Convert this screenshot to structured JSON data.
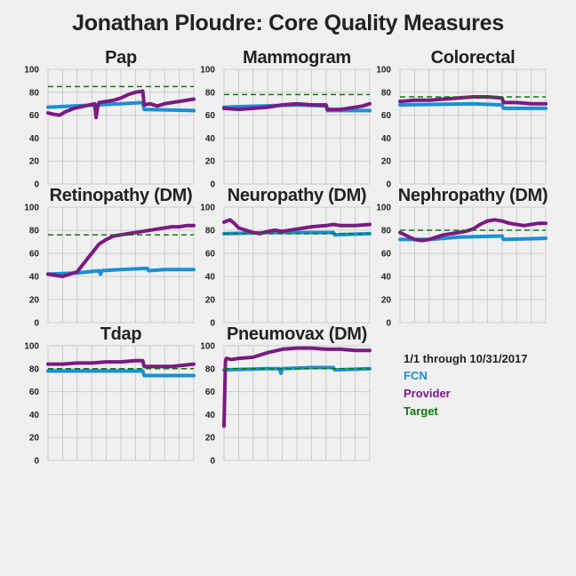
{
  "title": "Jonathan Ploudre: Core Quality Measures",
  "legend": {
    "period": "1/1 through 10/31/2017",
    "items": [
      {
        "label": "FCN",
        "color": "#1a8fd6"
      },
      {
        "label": "Provider",
        "color": "#7b1a82"
      },
      {
        "label": "Target",
        "color": "#0b7a0b"
      }
    ]
  },
  "colors": {
    "fcn": "#1a8fd6",
    "provider": "#7b1a82",
    "target": "#0b7a0b",
    "grid": "#cccccc",
    "background": "#f0f0f0"
  },
  "chart_data": [
    {
      "type": "line",
      "title": "Pap",
      "ylim": [
        0,
        100
      ],
      "yticks": [
        0,
        20,
        40,
        60,
        80,
        100
      ],
      "target": 85,
      "series": [
        {
          "name": "FCN",
          "x": [
            0,
            0.5,
            0.65,
            0.66,
            1.0
          ],
          "y": [
            67,
            70,
            71,
            65,
            64
          ]
        },
        {
          "name": "Provider",
          "x": [
            0,
            0.03,
            0.08,
            0.12,
            0.18,
            0.25,
            0.32,
            0.33,
            0.34,
            0.35,
            0.4,
            0.45,
            0.5,
            0.55,
            0.6,
            0.65,
            0.66,
            0.7,
            0.75,
            0.8,
            0.85,
            0.9,
            0.95,
            1.0
          ],
          "y": [
            62,
            61,
            60,
            63,
            66,
            68,
            70,
            58,
            67,
            71,
            72,
            73,
            75,
            78,
            80,
            81,
            69,
            70,
            68,
            70,
            71,
            72,
            73,
            74
          ]
        }
      ]
    },
    {
      "type": "line",
      "title": "Mammogram",
      "ylim": [
        0,
        100
      ],
      "yticks": [
        0,
        20,
        40,
        60,
        80,
        100
      ],
      "target": 78,
      "series": [
        {
          "name": "FCN",
          "x": [
            0,
            0.5,
            0.7,
            0.71,
            1.0
          ],
          "y": [
            67,
            69,
            68,
            64,
            64
          ]
        },
        {
          "name": "Provider",
          "x": [
            0,
            0.1,
            0.2,
            0.3,
            0.4,
            0.5,
            0.6,
            0.7,
            0.71,
            0.8,
            0.9,
            0.95,
            1.0
          ],
          "y": [
            66,
            65,
            66,
            67,
            69,
            70,
            69,
            69,
            65,
            65,
            67,
            68,
            70
          ]
        }
      ]
    },
    {
      "type": "line",
      "title": "Colorectal",
      "ylim": [
        0,
        100
      ],
      "yticks": [
        0,
        20,
        40,
        60,
        80,
        100
      ],
      "target": 76,
      "series": [
        {
          "name": "FCN",
          "x": [
            0,
            0.5,
            0.7,
            0.71,
            1.0
          ],
          "y": [
            69,
            70,
            69,
            66,
            66
          ]
        },
        {
          "name": "Provider",
          "x": [
            0,
            0.1,
            0.2,
            0.3,
            0.4,
            0.5,
            0.6,
            0.7,
            0.71,
            0.8,
            0.9,
            1.0
          ],
          "y": [
            72,
            73,
            73,
            74,
            75,
            76,
            76,
            75,
            71,
            71,
            70,
            70
          ]
        }
      ]
    },
    {
      "type": "line",
      "title": "Retinopathy (DM)",
      "ylim": [
        0,
        100
      ],
      "yticks": [
        0,
        20,
        40,
        60,
        80,
        100
      ],
      "target": 76,
      "series": [
        {
          "name": "FCN",
          "x": [
            0,
            0.2,
            0.35,
            0.36,
            0.37,
            0.5,
            0.68,
            0.69,
            0.8,
            1.0
          ],
          "y": [
            42,
            43,
            45,
            42,
            45,
            46,
            47,
            45,
            46,
            46
          ]
        },
        {
          "name": "Provider",
          "x": [
            0,
            0.05,
            0.1,
            0.15,
            0.2,
            0.25,
            0.3,
            0.35,
            0.4,
            0.45,
            0.5,
            0.55,
            0.6,
            0.65,
            0.7,
            0.75,
            0.8,
            0.85,
            0.9,
            0.95,
            1.0
          ],
          "y": [
            42,
            41,
            40,
            42,
            44,
            52,
            60,
            68,
            72,
            75,
            76,
            77,
            78,
            79,
            80,
            81,
            82,
            83,
            83,
            84,
            84
          ]
        }
      ]
    },
    {
      "type": "line",
      "title": "Neuropathy (DM)",
      "ylim": [
        0,
        100
      ],
      "yticks": [
        0,
        20,
        40,
        60,
        80,
        100
      ],
      "target": 77,
      "series": [
        {
          "name": "FCN",
          "x": [
            0,
            0.3,
            0.5,
            0.75,
            0.76,
            1.0
          ],
          "y": [
            77,
            78,
            78,
            78,
            76,
            77
          ]
        },
        {
          "name": "Provider",
          "x": [
            0,
            0.04,
            0.07,
            0.1,
            0.15,
            0.2,
            0.25,
            0.3,
            0.35,
            0.4,
            0.5,
            0.6,
            0.7,
            0.75,
            0.8,
            0.9,
            1.0
          ],
          "y": [
            87,
            89,
            86,
            82,
            80,
            78,
            77,
            79,
            80,
            79,
            81,
            83,
            84,
            85,
            84,
            84,
            85
          ]
        }
      ]
    },
    {
      "type": "line",
      "title": "Nephropathy (DM)",
      "ylim": [
        0,
        100
      ],
      "yticks": [
        0,
        20,
        40,
        60,
        80,
        100
      ],
      "target": 80,
      "series": [
        {
          "name": "FCN",
          "x": [
            0,
            0.2,
            0.4,
            0.7,
            0.71,
            1.0
          ],
          "y": [
            72,
            72,
            74,
            75,
            72,
            73
          ]
        },
        {
          "name": "Provider",
          "x": [
            0,
            0.05,
            0.1,
            0.15,
            0.2,
            0.25,
            0.3,
            0.4,
            0.45,
            0.5,
            0.55,
            0.6,
            0.65,
            0.7,
            0.75,
            0.8,
            0.85,
            0.9,
            0.95,
            1.0
          ],
          "y": [
            78,
            75,
            72,
            71,
            72,
            74,
            76,
            78,
            79,
            81,
            85,
            88,
            89,
            88,
            86,
            85,
            84,
            85,
            86,
            86
          ]
        }
      ]
    },
    {
      "type": "line",
      "title": "Tdap",
      "ylim": [
        0,
        100
      ],
      "yticks": [
        0,
        20,
        40,
        60,
        80,
        100
      ],
      "target": 80,
      "series": [
        {
          "name": "FCN",
          "x": [
            0,
            0.3,
            0.6,
            0.65,
            0.66,
            1.0
          ],
          "y": [
            78,
            78,
            78,
            78,
            74,
            74
          ]
        },
        {
          "name": "Provider",
          "x": [
            0,
            0.1,
            0.2,
            0.3,
            0.4,
            0.5,
            0.6,
            0.65,
            0.66,
            0.75,
            0.85,
            1.0
          ],
          "y": [
            84,
            84,
            85,
            85,
            86,
            86,
            87,
            87,
            82,
            82,
            82,
            84
          ]
        }
      ]
    },
    {
      "type": "line",
      "title": "Pneumovax (DM)",
      "ylim": [
        0,
        100
      ],
      "yticks": [
        0,
        20,
        40,
        60,
        80,
        100
      ],
      "target": 80,
      "series": [
        {
          "name": "FCN",
          "x": [
            0,
            0.3,
            0.38,
            0.39,
            0.4,
            0.6,
            0.75,
            0.76,
            1.0
          ],
          "y": [
            79,
            80,
            80,
            76,
            80,
            81,
            81,
            79,
            80
          ]
        },
        {
          "name": "Provider",
          "x": [
            0,
            0.01,
            0.015,
            0.02,
            0.05,
            0.1,
            0.2,
            0.3,
            0.4,
            0.5,
            0.6,
            0.7,
            0.8,
            0.9,
            1.0
          ],
          "y": [
            30,
            86,
            89,
            89,
            88,
            89,
            90,
            94,
            97,
            98,
            98,
            97,
            97,
            96,
            96
          ]
        }
      ]
    }
  ]
}
